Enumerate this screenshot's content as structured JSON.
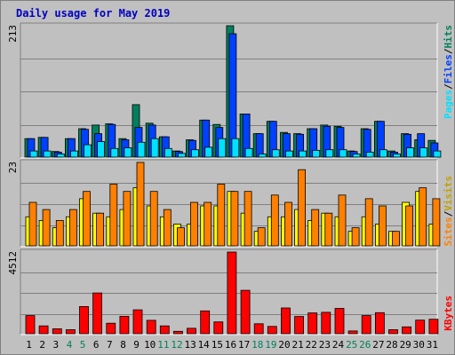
{
  "title": "Daily usage for May 2019",
  "colors": {
    "background": "#c0c0c0",
    "title": "#0000c0",
    "gridline": "#808080",
    "hits": "#00805c",
    "files": "#0040ff",
    "pages": "#00e0ff",
    "visits": "#ffff00",
    "sites": "#ff8000",
    "kbytes": "#ff0000",
    "weekday": "#000000",
    "weekend": "#00805c"
  },
  "legend": {
    "top": {
      "pages": "Pages",
      "files": "Files",
      "hits": "Hits",
      "sep": "/"
    },
    "mid": {
      "sites": "Sites",
      "visits": "Visits",
      "sep": "/"
    },
    "bottom": {
      "kbytes": "KBytes"
    }
  },
  "chart_data": [
    {
      "type": "bar",
      "panel": "hits-files-pages",
      "y_max_label": "213",
      "ylim": [
        0,
        213
      ],
      "grid": true,
      "categories": [
        "1",
        "2",
        "3",
        "4",
        "5",
        "6",
        "7",
        "8",
        "9",
        "10",
        "11",
        "12",
        "13",
        "14",
        "15",
        "16",
        "17",
        "18",
        "19",
        "20",
        "21",
        "22",
        "23",
        "24",
        "25",
        "26",
        "27",
        "28",
        "29",
        "30",
        "31"
      ],
      "weekend_days": [
        "4",
        "5",
        "11",
        "12",
        "18",
        "19",
        "25",
        "26"
      ],
      "series": [
        {
          "name": "Hits",
          "values": [
            30,
            32,
            9,
            30,
            46,
            52,
            54,
            30,
            85,
            55,
            33,
            10,
            28,
            60,
            53,
            213,
            70,
            38,
            58,
            40,
            38,
            46,
            52,
            50,
            10,
            46,
            58,
            10,
            38,
            28,
            27
          ]
        },
        {
          "name": "Files",
          "values": [
            30,
            32,
            8,
            30,
            45,
            38,
            53,
            28,
            48,
            52,
            33,
            9,
            27,
            60,
            48,
            200,
            70,
            38,
            58,
            38,
            37,
            46,
            50,
            48,
            9,
            45,
            58,
            8,
            37,
            38,
            23
          ]
        },
        {
          "name": "Pages",
          "values": [
            10,
            10,
            5,
            10,
            20,
            25,
            14,
            15,
            24,
            30,
            14,
            6,
            12,
            16,
            30,
            30,
            14,
            5,
            12,
            10,
            10,
            11,
            12,
            12,
            5,
            8,
            12,
            5,
            15,
            15,
            10
          ]
        }
      ]
    },
    {
      "type": "bar",
      "panel": "visits-sites",
      "y_max_label": "23",
      "ylim": [
        0,
        23
      ],
      "grid": true,
      "categories": [
        "1",
        "2",
        "3",
        "4",
        "5",
        "6",
        "7",
        "8",
        "9",
        "10",
        "11",
        "12",
        "13",
        "14",
        "15",
        "16",
        "17",
        "18",
        "19",
        "20",
        "21",
        "22",
        "23",
        "24",
        "25",
        "26",
        "27",
        "28",
        "29",
        "30",
        "31"
      ],
      "series": [
        {
          "name": "Visits",
          "values": [
            8,
            7,
            5,
            8,
            13,
            9,
            8,
            10,
            16,
            11,
            8,
            6,
            6,
            11,
            11,
            15,
            9,
            4,
            8,
            8,
            10,
            7,
            9,
            8,
            4,
            8,
            6,
            4,
            12,
            15,
            6
          ]
        },
        {
          "name": "Sites",
          "values": [
            12,
            10,
            7,
            10,
            15,
            9,
            17,
            15,
            23,
            15,
            10,
            5,
            12,
            12,
            17,
            15,
            15,
            5,
            14,
            12,
            21,
            10,
            9,
            14,
            5,
            13,
            11,
            4,
            11,
            16,
            13
          ]
        }
      ]
    },
    {
      "type": "bar",
      "panel": "kbytes",
      "y_max_label": "4512",
      "ylim": [
        0,
        4512
      ],
      "grid": true,
      "categories": [
        "1",
        "2",
        "3",
        "4",
        "5",
        "6",
        "7",
        "8",
        "9",
        "10",
        "11",
        "12",
        "13",
        "14",
        "15",
        "16",
        "17",
        "18",
        "19",
        "20",
        "21",
        "22",
        "23",
        "24",
        "25",
        "26",
        "27",
        "28",
        "29",
        "30",
        "31"
      ],
      "series": [
        {
          "name": "KBytes",
          "values": [
            1000,
            430,
            270,
            220,
            1500,
            2250,
            580,
            960,
            1320,
            740,
            430,
            130,
            300,
            1260,
            650,
            4512,
            2400,
            550,
            400,
            1420,
            950,
            1150,
            1180,
            1400,
            150,
            1000,
            1160,
            220,
            380,
            750,
            800
          ]
        }
      ]
    }
  ]
}
